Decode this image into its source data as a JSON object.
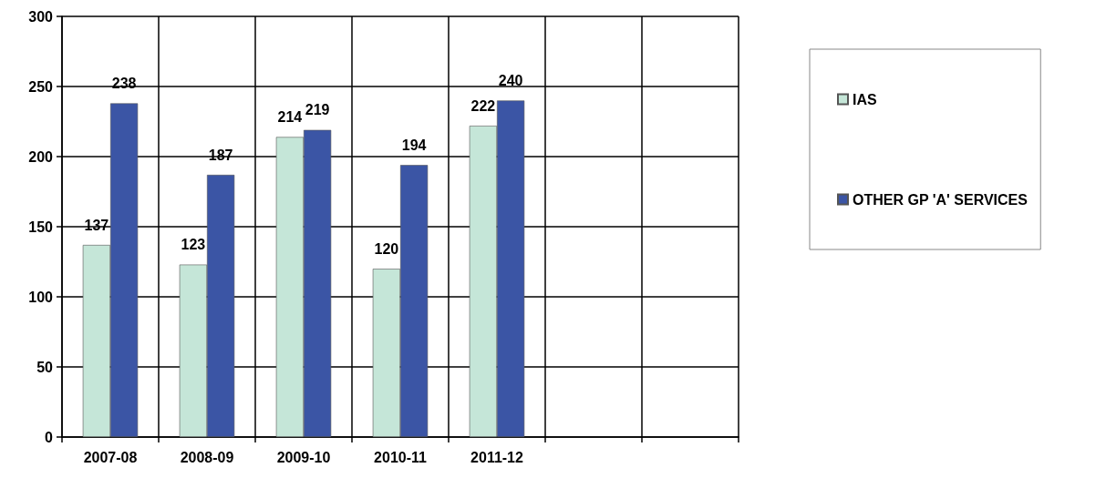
{
  "chart_data": {
    "type": "bar",
    "categories": [
      "2007-08",
      "2008-09",
      "2009-10",
      "2010-11",
      "2011-12",
      null,
      null
    ],
    "series": [
      {
        "name": "IAS",
        "color": "#c5e6d8",
        "values": [
          137,
          123,
          214,
          120,
          222,
          null,
          null
        ]
      },
      {
        "name": "OTHER GP 'A' SERVICES",
        "color": "#3b55a5",
        "values": [
          238,
          187,
          219,
          194,
          240,
          null,
          null
        ]
      }
    ],
    "ylim": [
      0,
      300
    ],
    "yticks": [
      0,
      50,
      100,
      150,
      200,
      250,
      300
    ],
    "grid": true,
    "legend": "right",
    "data_labels": true
  }
}
